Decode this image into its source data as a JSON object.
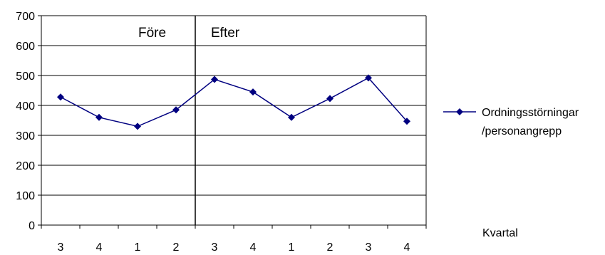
{
  "chart_data": {
    "type": "line",
    "title": "",
    "xlabel": "Kvartal",
    "ylabel": "",
    "ylim": [
      0,
      700
    ],
    "yticks": [
      0,
      100,
      200,
      300,
      400,
      500,
      600,
      700
    ],
    "categories": [
      "3",
      "4",
      "1",
      "2",
      "3",
      "4",
      "1",
      "2",
      "3",
      "4"
    ],
    "series": [
      {
        "name": "Ordningsstörningar /personangrepp",
        "values": [
          428,
          360,
          330,
          385,
          487,
          445,
          360,
          423,
          492,
          347
        ],
        "color": "#000080",
        "marker": "diamond"
      }
    ],
    "grid": true,
    "legend": "right",
    "annotations": [
      {
        "text": "Före",
        "region": "before"
      },
      {
        "text": "Efter",
        "region": "after"
      }
    ],
    "divider_after_category_index": 3
  },
  "legend": {
    "line1": "Ordningsstörningar",
    "line2": "/personangrepp"
  }
}
